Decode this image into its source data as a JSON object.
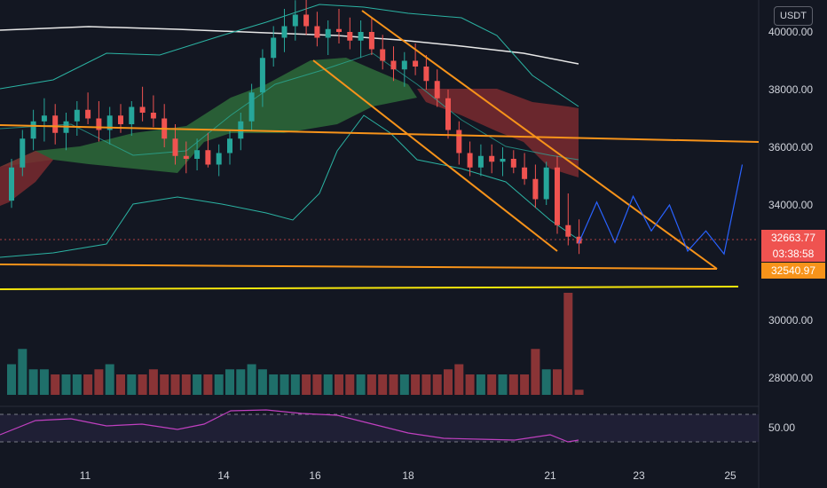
{
  "price_badge": {
    "unit": "USDT",
    "last": "32663.77",
    "countdown": "03:38:58",
    "level": "32540.97"
  },
  "colors": {
    "background": "#131722",
    "up": "#26a69a",
    "down": "#ef5350",
    "vol_up": "#1f6f6a",
    "vol_down": "#8a3436",
    "sma": "#e8e8e8",
    "bb": "#2bb3a3",
    "trend": "#f7931a",
    "support": "#f5e60c",
    "projection": "#2962ff",
    "rsi": "#c040c0",
    "cloud_bull": "#2e6b3a",
    "cloud_bear": "#7a2a2f"
  },
  "chart_data": {
    "type": "candlestick",
    "price_axis": {
      "ticks": [
        "40000.00",
        "38000.00",
        "36000.00",
        "34000.00",
        "30000.00",
        "28000.00"
      ]
    },
    "rsi_axis": {
      "ticks": [
        "50.00"
      ]
    },
    "x_axis": {
      "ticks": [
        "11",
        "14",
        "16",
        "18",
        "21",
        "23",
        "25"
      ]
    },
    "last_price": 32663.77,
    "support_level": 32540.97,
    "candles": [
      [
        34150,
        35600,
        33900,
        35300
      ],
      [
        35300,
        36600,
        35000,
        36300
      ],
      [
        36300,
        37300,
        35900,
        36900
      ],
      [
        36900,
        37700,
        36200,
        37100
      ],
      [
        37100,
        37500,
        36100,
        36500
      ],
      [
        36500,
        37200,
        35900,
        36900
      ],
      [
        36900,
        37600,
        36400,
        37300
      ],
      [
        37300,
        37900,
        36800,
        37000
      ],
      [
        37000,
        37600,
        36200,
        36600
      ],
      [
        36600,
        37400,
        36100,
        37100
      ],
      [
        37100,
        37500,
        36500,
        36800
      ],
      [
        36800,
        37600,
        36400,
        37400
      ],
      [
        37400,
        38100,
        36900,
        37200
      ],
      [
        37200,
        37800,
        36700,
        37000
      ],
      [
        37000,
        37500,
        36000,
        36300
      ],
      [
        36300,
        36800,
        35400,
        35700
      ],
      [
        35700,
        36200,
        35100,
        35600
      ],
      [
        35600,
        36300,
        35200,
        35900
      ],
      [
        35900,
        36500,
        35300,
        35400
      ],
      [
        35400,
        36100,
        35000,
        35800
      ],
      [
        35800,
        36600,
        35400,
        36300
      ],
      [
        36300,
        37200,
        35900,
        36900
      ],
      [
        36900,
        38200,
        36600,
        37900
      ],
      [
        37900,
        39400,
        37400,
        39100
      ],
      [
        39100,
        40200,
        38800,
        39800
      ],
      [
        39800,
        40800,
        39300,
        40200
      ],
      [
        40200,
        41100,
        39700,
        40600
      ],
      [
        40600,
        41200,
        39900,
        40200
      ],
      [
        40200,
        40700,
        39500,
        39800
      ],
      [
        39800,
        40400,
        39200,
        40100
      ],
      [
        40100,
        40800,
        39600,
        40000
      ],
      [
        40000,
        40500,
        39400,
        39700
      ],
      [
        39700,
        40400,
        39100,
        40000
      ],
      [
        40000,
        40500,
        39200,
        39400
      ],
      [
        39400,
        39900,
        38700,
        39000
      ],
      [
        39000,
        39500,
        38300,
        38700
      ],
      [
        38700,
        39300,
        38100,
        39000
      ],
      [
        39000,
        39600,
        38500,
        38800
      ],
      [
        38800,
        39200,
        38000,
        38300
      ],
      [
        38300,
        38700,
        37400,
        37700
      ],
      [
        37700,
        38000,
        36300,
        36600
      ],
      [
        36600,
        36900,
        35400,
        35800
      ],
      [
        35800,
        36200,
        35000,
        35300
      ],
      [
        35300,
        36100,
        35000,
        35700
      ],
      [
        35700,
        36100,
        35100,
        35500
      ],
      [
        35500,
        36000,
        35000,
        35600
      ],
      [
        35600,
        35900,
        35100,
        35300
      ],
      [
        35300,
        35800,
        34700,
        34900
      ],
      [
        34900,
        35400,
        33900,
        34200
      ],
      [
        34200,
        35500,
        34000,
        35300
      ],
      [
        35300,
        35700,
        33000,
        33300
      ],
      [
        33300,
        34400,
        32600,
        32900
      ],
      [
        32900,
        33500,
        32300,
        32663.77
      ]
    ],
    "volume": [
      6,
      9,
      5,
      5,
      4,
      4,
      4,
      4,
      5,
      6,
      4,
      4,
      4,
      5,
      4,
      4,
      4,
      4,
      4,
      4,
      5,
      5,
      6,
      5,
      4,
      4,
      4,
      4,
      4,
      4,
      4,
      4,
      4,
      4,
      4,
      4,
      4,
      4,
      4,
      4,
      5,
      6,
      4,
      4,
      4,
      4,
      4,
      4,
      9,
      5,
      5,
      20,
      1
    ],
    "projection_path": [
      [
        32663.77,
        0
      ],
      [
        34100,
        1
      ],
      [
        32700,
        2
      ],
      [
        34300,
        3
      ],
      [
        33100,
        4
      ],
      [
        34000,
        5
      ],
      [
        32400,
        6
      ],
      [
        33100,
        7
      ],
      [
        32300,
        8
      ],
      [
        35400,
        9
      ]
    ],
    "rsi_axis_value": 50
  }
}
